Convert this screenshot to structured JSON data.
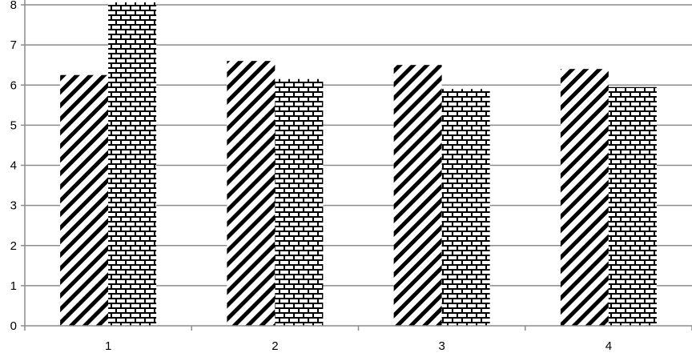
{
  "chart_data": {
    "type": "bar",
    "title": "",
    "xlabel": "",
    "ylabel": "",
    "categories": [
      "1",
      "2",
      "3",
      "4"
    ],
    "series": [
      {
        "pattern": "diagonal-stripes",
        "values": [
          6.25,
          6.6,
          6.5,
          6.4
        ]
      },
      {
        "pattern": "brick",
        "values": [
          8.1,
          6.15,
          5.9,
          5.95
        ]
      }
    ],
    "ylim": [
      0,
      8
    ],
    "yticks": [
      "0",
      "1",
      "2",
      "3",
      "4",
      "5",
      "6",
      "7",
      "8"
    ],
    "grid": true,
    "legend": "none",
    "colors": {
      "grid": "#8c8c8c",
      "bar": "#000000",
      "background": "#ffffff"
    }
  }
}
